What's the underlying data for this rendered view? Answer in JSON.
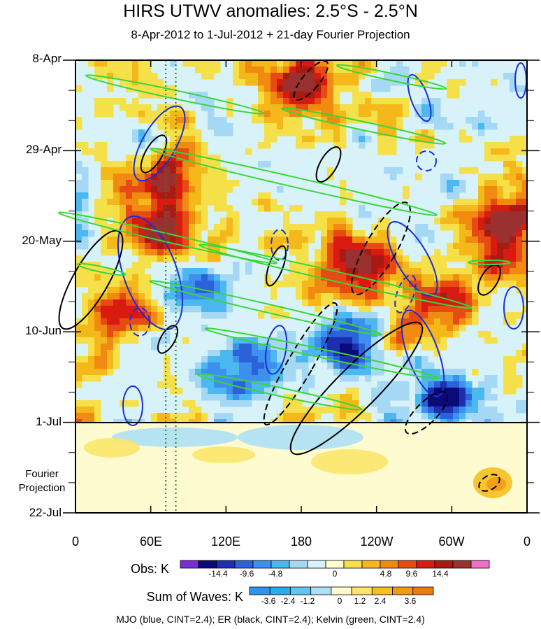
{
  "title": "HIRS UTWV anomalies: 2.5°S - 2.5°N",
  "subtitle": "8-Apr-2012 to 1-Jul-2012 + 21-day Fourier Projection",
  "fourier_label_line1": "Fourier",
  "fourier_label_line2": "Projection",
  "footer": "MJO (blue, CINT=2.4); ER (black, CINT=2.4); Kelvin (green, CINT=2.4)",
  "chart_data": {
    "type": "heatmap",
    "title": "HIRS UTWV anomalies: 2.5°S - 2.5°N",
    "subtitle": "8-Apr-2012 to 1-Jul-2012 + 21-day Fourier Projection",
    "x_tick_labels": [
      "0",
      "60E",
      "120E",
      "180",
      "120W",
      "60W",
      "0"
    ],
    "x_range_deg": [
      0,
      360
    ],
    "y_tick_labels": [
      "8-Apr",
      "29-Apr",
      "20-May",
      "10-Jun",
      "1-Jul",
      "22-Jul"
    ],
    "y_range_days_from_start": [
      0,
      105
    ],
    "observation_end_label": "1-Jul",
    "reference_lines_deg_east": [
      72,
      80
    ],
    "obs_colorbar": {
      "label": "Obs: K",
      "tick_labels": [
        "-14.4",
        "-9.6",
        "-4.8",
        "0",
        "4.8",
        "9.6",
        "14.4"
      ],
      "colors": [
        "#7a2fd6",
        "#0a0a78",
        "#1d2fb0",
        "#2b62d8",
        "#3d8ff0",
        "#4cb8f0",
        "#a5d8f5",
        "#d8f2f9",
        "#fffbd0",
        "#f5e04a",
        "#f5b81a",
        "#f08a10",
        "#e84a14",
        "#d81a10",
        "#a81a12",
        "#9a3030",
        "#ee6fc6"
      ]
    },
    "waves_colorbar": {
      "label": "Sum of Waves: K",
      "tick_labels": [
        "-3.6",
        "-2.4",
        "-1.2",
        "0",
        "1.2",
        "2.4",
        "3.6"
      ],
      "colors": [
        "#2b95f0",
        "#2aabf0",
        "#5ec8f2",
        "#aee0f5",
        "#fffbd0",
        "#fbe66a",
        "#f5c020",
        "#f39a14",
        "#ee7a12"
      ]
    },
    "contours": [
      {
        "name": "MJO",
        "color": "#1a2ed6",
        "cint": 2.4
      },
      {
        "name": "ER",
        "color": "#000000",
        "cint": 2.4
      },
      {
        "name": "Kelvin",
        "color": "#3ad63a",
        "cint": 2.4
      }
    ]
  }
}
